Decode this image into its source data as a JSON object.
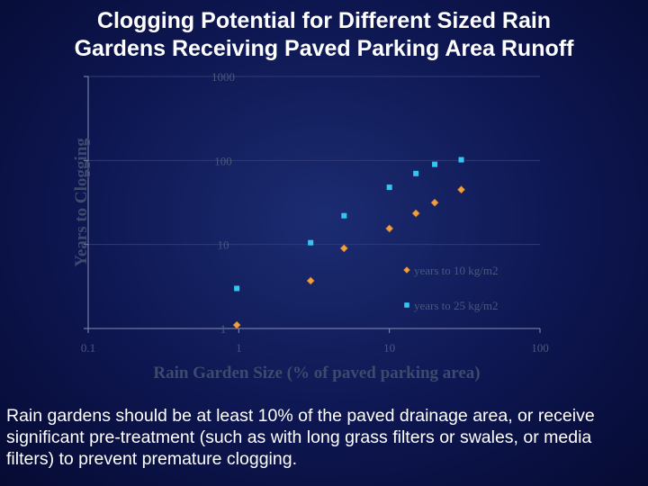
{
  "slide": {
    "title_line1": "Clogging Potential for Different Sized Rain",
    "title_line2": "Gardens Receiving Paved Parking Area Runoff",
    "caption": "Rain gardens should be at least 10% of the paved drainage area, or receive significant pre-treatment (such as with long grass filters or swales, or media filters) to prevent premature clogging."
  },
  "colors": {
    "gridline": "#2f3b78",
    "axis": "#8890b0",
    "series_10": "#f0a040",
    "series_25": "#33c6f0"
  },
  "chart_data": {
    "type": "scatter",
    "xlabel": "Rain Garden Size (% of paved parking area)",
    "ylabel": "Years to Clogging",
    "xscale": "log",
    "yscale": "log",
    "xlim": [
      0.1,
      100
    ],
    "ylim": [
      1,
      1000
    ],
    "x_ticks": [
      "0.1",
      "1",
      "10",
      "100"
    ],
    "x_tick_values": [
      0.1,
      1,
      10,
      100
    ],
    "y_ticks": [
      "1",
      "10",
      "100",
      "1000"
    ],
    "y_tick_values": [
      1,
      10,
      100,
      1000
    ],
    "grid": "horizontal",
    "legend_position": "lower-right",
    "series": [
      {
        "name": "years to 10 kg/m2",
        "marker": "diamond",
        "x": [
          0.97,
          3,
          5,
          10,
          15,
          20,
          30
        ],
        "y": [
          1.1,
          3.7,
          9.0,
          15.5,
          23.5,
          31.5,
          45.0
        ]
      },
      {
        "name": "years to 25 kg/m2",
        "marker": "square",
        "x": [
          0.97,
          3,
          5,
          10,
          15,
          20,
          30
        ],
        "y": [
          3.0,
          10.5,
          22.0,
          48.0,
          70.0,
          90.0,
          102.0
        ]
      }
    ]
  }
}
